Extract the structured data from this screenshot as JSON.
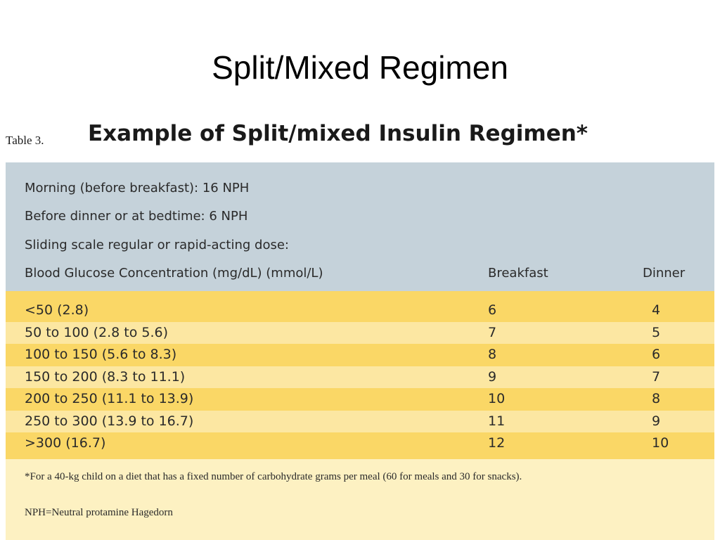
{
  "slide": {
    "title": "Split/Mixed Regimen"
  },
  "table": {
    "label": "Table 3.",
    "title": "Example of Split/mixed Insulin Regimen*",
    "header_lines": [
      "Morning (before breakfast): 16 NPH",
      "Before dinner or at bedtime: 6 NPH",
      "Sliding scale regular or rapid-acting dose:"
    ],
    "columns": {
      "range": "Blood Glucose Concentration (mg/dL) (mmol/L)",
      "breakfast": "Breakfast",
      "dinner": "Dinner"
    },
    "rows": [
      {
        "range": "<50 (2.8)",
        "breakfast": "6",
        "dinner": "4"
      },
      {
        "range": "50 to 100 (2.8 to 5.6)",
        "breakfast": "7",
        "dinner": "5"
      },
      {
        "range": "100 to 150 (5.6 to 8.3)",
        "breakfast": "8",
        "dinner": "6"
      },
      {
        "range": "150 to 200 (8.3 to 11.1)",
        "breakfast": "9",
        "dinner": "7"
      },
      {
        "range": "200 to 250 (11.1 to 13.9)",
        "breakfast": "10",
        "dinner": "8"
      },
      {
        "range": "250 to 300 (13.9 to 16.7)",
        "breakfast": "11",
        "dinner": "9"
      },
      {
        "range": ">300 (16.7)",
        "breakfast": "12",
        "dinner": "10"
      }
    ],
    "footnote": "*For a 40-kg child on a diet that has a fixed number of carbohydrate grams per meal (60 for meals and 30 for snacks).",
    "abbreviation": "NPH=Neutral protamine Hagedorn"
  },
  "colors": {
    "header_band": "#c5d2da",
    "row_dark": "#fad766",
    "row_light": "#fce7a2",
    "footnote_band": "#fdf1c2"
  }
}
